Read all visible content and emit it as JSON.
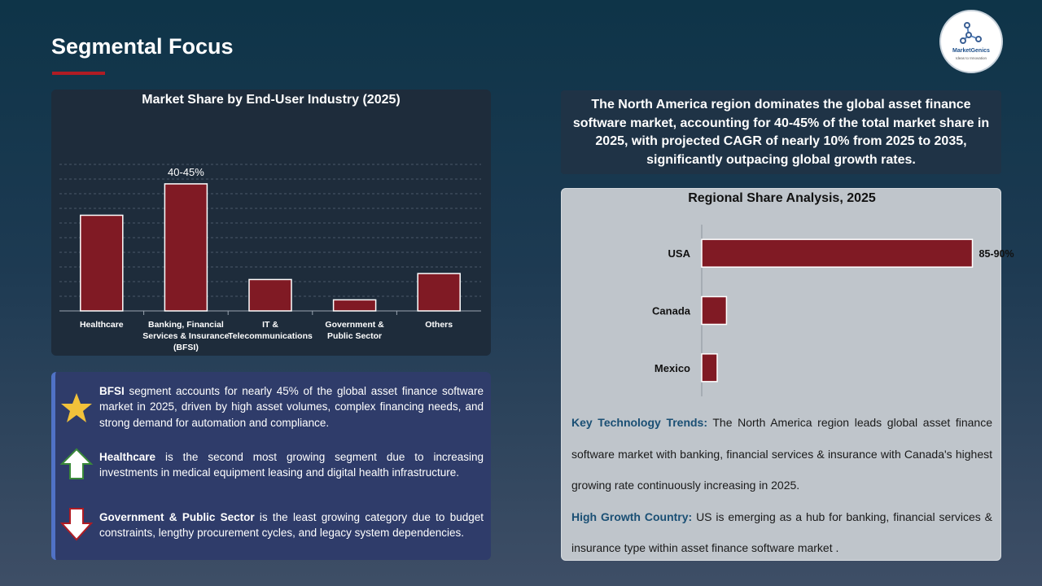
{
  "page": {
    "title": "Segmental Focus"
  },
  "logo": {
    "name": "MarketGenics",
    "tagline": "Ideas to Innovation"
  },
  "chart_data": [
    {
      "type": "bar",
      "title": "Market Share by End-User Industry  (2025)",
      "categories": [
        "Healthcare",
        "Banking, Financial Services & Insurance (BFSI)",
        "IT & Telecommunications",
        "Government & Public Sector",
        "Others"
      ],
      "category_lines": [
        [
          "Healthcare"
        ],
        [
          "Banking, Financial",
          "Services & Insurance",
          "(BFSI)"
        ],
        [
          "IT &",
          "Telecommunications"
        ],
        [
          "Government &",
          "Public Sector"
        ],
        [
          "Others"
        ]
      ],
      "values": [
        32,
        42.5,
        10.5,
        3.7,
        12.5
      ],
      "data_labels": [
        "",
        "40-45%",
        "",
        "",
        ""
      ],
      "ylim": [
        0,
        55
      ],
      "grid": true,
      "bar_color": "#801a24"
    },
    {
      "type": "bar",
      "orientation": "horizontal",
      "title": "Regional Share Analysis, 2025",
      "categories": [
        "USA",
        "Canada",
        "Mexico"
      ],
      "values": [
        87.5,
        8,
        5
      ],
      "data_labels": [
        "85-90%",
        "",
        ""
      ],
      "xlim": [
        0,
        100
      ],
      "bar_color": "#801a24"
    }
  ],
  "bullets": [
    {
      "icon": "star-icon",
      "bold": "BFSI",
      "text": " segment accounts for nearly 45% of the global asset finance software market in 2025, driven by high asset volumes, complex financing needs, and strong demand for automation and compliance."
    },
    {
      "icon": "up-arrow-icon",
      "bold": "Healthcare",
      "text": " is the second most growing segment due to increasing investments in medical equipment leasing and digital health infrastructure."
    },
    {
      "icon": "down-arrow-icon",
      "bold": "Government & Public Sector",
      "text": " is the least growing category due to budget constraints, lengthy procurement cycles, and legacy system dependencies."
    }
  ],
  "summary": "The North America region dominates the global asset finance software market, accounting for 40-45% of the total market share in 2025, with projected CAGR of nearly 10% from 2025 to 2035, significantly outpacing global growth rates.",
  "trends": {
    "key_label": "Key Technology Trends:",
    "key_text": " The North America region leads global asset finance software market with banking, financial services & insurance with Canada's highest growing rate continuously increasing in 2025.",
    "growth_label": "High Growth Country:",
    "growth_text": " US is emerging as a hub for banking, financial services & insurance type within asset finance software market ."
  },
  "colors": {
    "accent_red": "#b01c24",
    "bar": "#801a24",
    "star": "#f2c23a",
    "bullet_border": "#5072c6"
  }
}
